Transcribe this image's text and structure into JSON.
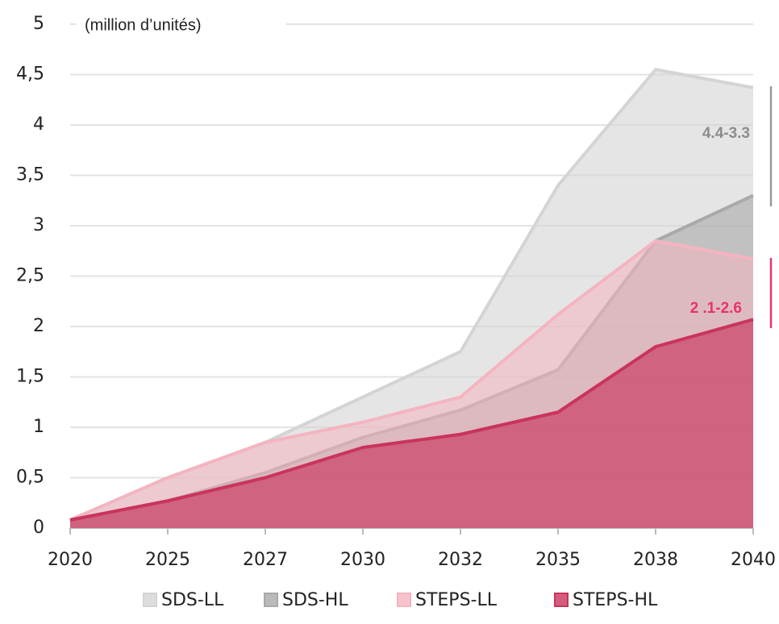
{
  "chart_data": {
    "type": "area",
    "subtitle": "(million d’unités)",
    "categories": [
      "2020",
      "2025",
      "2027",
      "2030",
      "2032",
      "2035",
      "2038",
      "2040"
    ],
    "series": [
      {
        "name": "SDS-LL",
        "color": "#d4d4d4",
        "values": [
          0.08,
          0.5,
          0.85,
          1.3,
          1.75,
          3.4,
          4.55,
          4.37
        ]
      },
      {
        "name": "SDS-HL",
        "color": "#a9a9a9",
        "values": [
          0.08,
          0.27,
          0.55,
          0.9,
          1.17,
          1.57,
          2.85,
          3.3
        ]
      },
      {
        "name": "STEPS-LL",
        "color": "#f4b4c0",
        "values": [
          0.08,
          0.5,
          0.85,
          1.05,
          1.3,
          2.12,
          2.85,
          2.67
        ]
      },
      {
        "name": "STEPS-HL",
        "color": "#c9345c",
        "values": [
          0.08,
          0.27,
          0.5,
          0.8,
          0.93,
          1.15,
          1.8,
          2.07
        ]
      }
    ],
    "ylim": [
      0,
      5
    ],
    "yticks": [
      0,
      {
        "value": 0.5,
        "label": "0,5"
      },
      1,
      {
        "value": 1.5,
        "label": "1,5"
      },
      2,
      {
        "value": 2.5,
        "label": "2,5"
      },
      3,
      {
        "value": 3.5,
        "label": "3,5"
      },
      4,
      {
        "value": 4.5,
        "label": "4,5"
      },
      5
    ],
    "grid": true,
    "annotations": [
      "4.4-3.3",
      "2 .1-2.6"
    ],
    "legend": "bottom"
  }
}
